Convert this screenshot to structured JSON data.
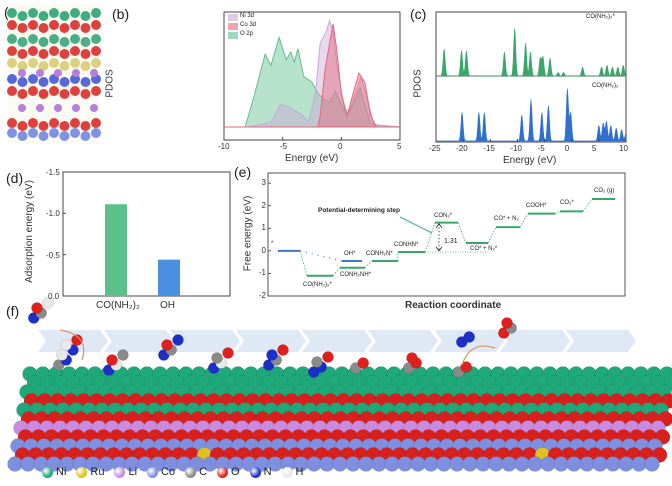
{
  "panels": {
    "a": "(a)",
    "b": "(b)",
    "c": "(c)",
    "d": "(d)",
    "e": "(e)",
    "f": "(f)"
  },
  "chart_data": [
    {
      "id": "b",
      "type": "area",
      "xlabel": "Energy (eV)",
      "ylabel": "PDOS",
      "xlim": [
        -10,
        5
      ],
      "xticks": [
        "-10",
        "-5",
        "0",
        "5"
      ],
      "legend_position": "top-left",
      "series": [
        {
          "name": "O  2p",
          "color": "#5fbf8f",
          "points": [
            [
              -10,
              0
            ],
            [
              -8.2,
              0
            ],
            [
              -7.5,
              0.25
            ],
            [
              -6.5,
              0.65
            ],
            [
              -6,
              0.55
            ],
            [
              -5.3,
              0.8
            ],
            [
              -4.7,
              0.6
            ],
            [
              -4.3,
              0.67
            ],
            [
              -4,
              0.58
            ],
            [
              -3.7,
              0.7
            ],
            [
              -3.2,
              0.45
            ],
            [
              -2.5,
              0.4
            ],
            [
              -2,
              0.3
            ],
            [
              -1.5,
              0.25
            ],
            [
              -1,
              0.22
            ],
            [
              -0.5,
              0.32
            ],
            [
              0,
              0.2
            ],
            [
              0.5,
              0.1
            ],
            [
              1,
              0.2
            ],
            [
              1.6,
              0.35
            ],
            [
              2,
              0.2
            ],
            [
              2.5,
              0.03
            ],
            [
              3,
              0.02
            ],
            [
              5,
              0
            ]
          ]
        },
        {
          "name": "Ni 3d",
          "color": "#c9a8d8",
          "points": [
            [
              -10,
              0
            ],
            [
              -8,
              0
            ],
            [
              -6,
              0.04
            ],
            [
              -5.2,
              0.2
            ],
            [
              -4.5,
              0.18
            ],
            [
              -3.5,
              0.12
            ],
            [
              -2.8,
              0.05
            ],
            [
              -2.2,
              0.3
            ],
            [
              -1.8,
              0.75
            ],
            [
              -1.3,
              0.85
            ],
            [
              -1,
              0.95
            ],
            [
              -0.7,
              0.85
            ],
            [
              -0.3,
              0.5
            ],
            [
              0.3,
              0.15
            ],
            [
              0.7,
              0.15
            ],
            [
              1.2,
              0.3
            ],
            [
              1.7,
              0.45
            ],
            [
              2.2,
              0.25
            ],
            [
              2.8,
              0.02
            ],
            [
              5,
              0
            ]
          ]
        },
        {
          "name": "Co 3d",
          "color": "#e5677a",
          "points": [
            [
              -10,
              0
            ],
            [
              -2,
              0
            ],
            [
              -1.8,
              0.1
            ],
            [
              -1.4,
              0.5
            ],
            [
              -1,
              0.75
            ],
            [
              -0.7,
              0.92
            ],
            [
              -0.4,
              0.7
            ],
            [
              0,
              0.3
            ],
            [
              0.5,
              0.1
            ],
            [
              1,
              0.3
            ],
            [
              1.5,
              0.48
            ],
            [
              2,
              0.4
            ],
            [
              2.5,
              0.1
            ],
            [
              3,
              0
            ],
            [
              5,
              0
            ]
          ]
        }
      ]
    },
    {
      "id": "c",
      "type": "area",
      "xlabel": "Energy (eV)",
      "ylabel": "PDOS",
      "xlim": [
        -25,
        10
      ],
      "xticks": [
        "-25",
        "-20",
        "-15",
        "-10",
        "-5",
        "0",
        "5",
        "10"
      ],
      "series": [
        {
          "name": "CO(NH₂)₂*",
          "color": "#3aa76a",
          "peaks": [
            [
              -23.5,
              0.45
            ],
            [
              -20.3,
              0.42
            ],
            [
              -19.4,
              0.42
            ],
            [
              -12.4,
              0.4
            ],
            [
              -10.5,
              0.8
            ],
            [
              -8.5,
              0.55
            ],
            [
              -7.6,
              0.4
            ],
            [
              -5.8,
              0.3
            ],
            [
              -5.3,
              0.32
            ],
            [
              -4,
              0.3
            ],
            [
              -2.5,
              0.06
            ],
            [
              -1.5,
              0.06
            ],
            [
              2,
              0.15
            ],
            [
              5.5,
              0.15
            ],
            [
              6.5,
              0.18
            ],
            [
              7.5,
              0.15
            ],
            [
              8.5,
              0.15
            ],
            [
              9.5,
              0.18
            ]
          ]
        },
        {
          "name": "CO(NH₂)₂",
          "color": "#2f6fd0",
          "peaks": [
            [
              -20.2,
              0.55
            ],
            [
              -17.1,
              0.55
            ],
            [
              -16.1,
              0.55
            ],
            [
              -9.2,
              0.5
            ],
            [
              -7.5,
              0.8
            ],
            [
              -5.5,
              0.55
            ],
            [
              -4.3,
              0.68
            ],
            [
              -0.8,
              1.0
            ],
            [
              -0.2,
              0.55
            ],
            [
              5,
              0.3
            ],
            [
              5.8,
              0.35
            ],
            [
              6.4,
              0.38
            ],
            [
              7.2,
              0.3
            ],
            [
              8.2,
              0.25
            ],
            [
              9.2,
              0.22
            ],
            [
              10,
              0.15
            ]
          ]
        }
      ]
    },
    {
      "id": "d",
      "type": "bar",
      "ylabel": "Adsorption energy (eV)",
      "ylim": [
        0,
        -1.5
      ],
      "yticks": [
        "-1.5",
        "-1.0",
        "-0.5",
        "0.0"
      ],
      "categories": [
        "CO(NH₂)₂",
        "OH"
      ],
      "values": [
        -1.11,
        -0.44
      ],
      "colors": [
        "#5cc08a",
        "#4a90e2"
      ]
    },
    {
      "id": "e",
      "type": "line",
      "xlabel": "Reaction coordinate",
      "ylabel": "Free energy (eV)",
      "ylim": [
        -2,
        3.45
      ],
      "yticks": [
        "3",
        "2",
        "1",
        "0",
        "-1",
        "-2"
      ],
      "annotation": "Potential-determining step",
      "barrier": "1.31",
      "steps": [
        {
          "label": "*",
          "value": 0.0,
          "color": "#3b78c9"
        },
        {
          "label": "CO(NH₂)₂*",
          "value": -1.1,
          "color": "#3aa76a"
        },
        {
          "label": "CONH₂NH*",
          "value": -0.75,
          "color": "#3aa76a"
        },
        {
          "label": "CONH₂N*",
          "value": -0.45,
          "color": "#3aa76a"
        },
        {
          "label": "CONHN*",
          "value": -0.05,
          "color": "#3aa76a"
        },
        {
          "label": "CON₂*",
          "value": 1.25,
          "color": "#3aa76a"
        },
        {
          "label": "CO* + N₂*",
          "value": 0.35,
          "color": "#3aa76a"
        },
        {
          "label": "CO* + N₂",
          "value": 1.05,
          "color": "#3aa76a"
        },
        {
          "label": "COOH*",
          "value": 1.65,
          "color": "#3aa76a"
        },
        {
          "label": "CO₂*",
          "value": 1.75,
          "color": "#3aa76a"
        },
        {
          "label": "CO₂ (g)",
          "value": 2.3,
          "color": "#3aa76a"
        }
      ],
      "side_branch": {
        "label": "OH*",
        "value": -0.45,
        "color": "#3b78c9"
      }
    }
  ],
  "legend_f": [
    {
      "label": "Ni",
      "color": "#1fa97a"
    },
    {
      "label": "Ru",
      "color": "#e0c020"
    },
    {
      "label": "Li",
      "color": "#c98be0"
    },
    {
      "label": "Co",
      "color": "#7f8fe0"
    },
    {
      "label": "C",
      "color": "#8a8a8a"
    },
    {
      "label": "O",
      "color": "#e0201c"
    },
    {
      "label": "N",
      "color": "#1c2fc8"
    },
    {
      "label": "H",
      "color": "#e8e8e8"
    }
  ]
}
